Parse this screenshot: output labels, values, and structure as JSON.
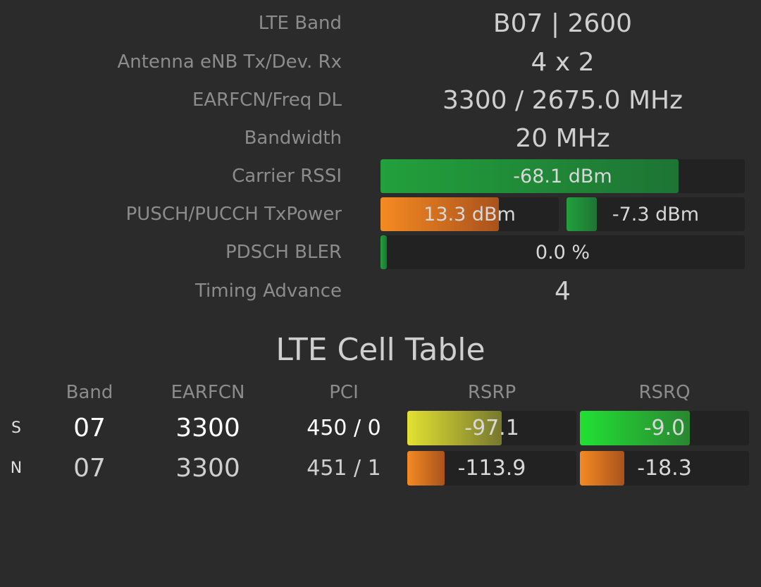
{
  "info_rows": [
    {
      "label": "LTE Band",
      "values": [
        "B07 | 2600"
      ]
    },
    {
      "label": "Antenna eNB Tx/Dev. Rx",
      "values": [
        "4 x 2"
      ]
    },
    {
      "label": "EARFCN/Freq DL",
      "values": [
        "3300 / 2675.0 MHz"
      ]
    },
    {
      "label": "Bandwidth",
      "values": [
        "20 MHz"
      ]
    },
    {
      "label": "Carrier RSSI",
      "values": [
        "-68.1 dBm"
      ]
    },
    {
      "label": "PUSCH/PUCCH TxPower",
      "values": [
        "13.3 dBm",
        "-7.3 dBm"
      ]
    },
    {
      "label": "PDSCH BLER",
      "values": [
        "0.0 %"
      ]
    },
    {
      "label": "Timing Advance",
      "values": [
        "4"
      ]
    }
  ],
  "cell_table": {
    "title": "LTE Cell Table",
    "columns": [
      "Band",
      "EARFCN",
      "PCI",
      "RSRP",
      "RSRQ"
    ],
    "rows": [
      {
        "type": "S",
        "band": "07",
        "earfcn": "3300",
        "pci": "450 / 0",
        "rsrp": "-97.1",
        "rsrq": "-9.0"
      },
      {
        "type": "N",
        "band": "07",
        "earfcn": "3300",
        "pci": "451 / 1",
        "rsrp": "-113.9",
        "rsrq": "-18.3"
      }
    ]
  }
}
